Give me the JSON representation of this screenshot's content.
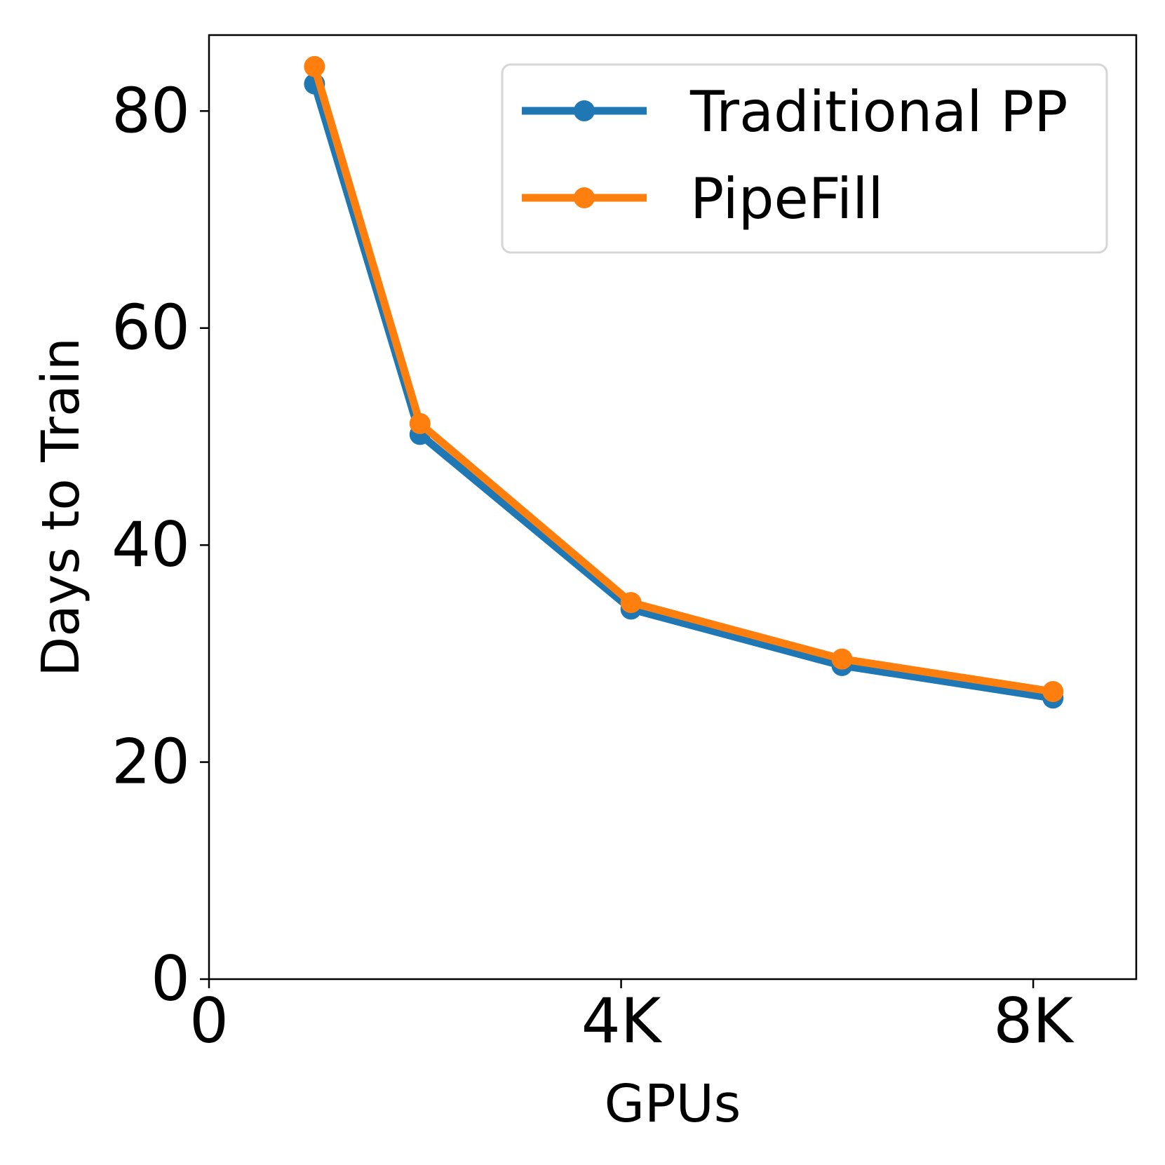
{
  "chart_data": {
    "type": "line",
    "title": "",
    "xlabel": "GPUs",
    "ylabel": "Days to Train",
    "xlim": [
      0,
      9000
    ],
    "ylim": [
      0,
      87
    ],
    "x_ticks": [
      {
        "value": 0,
        "label": "0"
      },
      {
        "value": 4000,
        "label": "4K"
      },
      {
        "value": 8000,
        "label": "8K"
      }
    ],
    "y_ticks": [
      {
        "value": 0,
        "label": "0"
      },
      {
        "value": 20,
        "label": "20"
      },
      {
        "value": 40,
        "label": "40"
      },
      {
        "value": 60,
        "label": "60"
      },
      {
        "value": 80,
        "label": "80"
      }
    ],
    "grid": false,
    "legend_position": "top-right",
    "series": [
      {
        "name": "Traditional PP",
        "color": "#1f77b4",
        "x": [
          1024,
          2048,
          4096,
          6144,
          8192
        ],
        "values": [
          82.5,
          50.2,
          34.1,
          28.9,
          25.9
        ]
      },
      {
        "name": "PipeFill",
        "color": "#ff7f0e",
        "x": [
          1024,
          2048,
          4096,
          6144,
          8192
        ],
        "values": [
          84.1,
          51.2,
          34.7,
          29.5,
          26.5
        ]
      }
    ]
  }
}
